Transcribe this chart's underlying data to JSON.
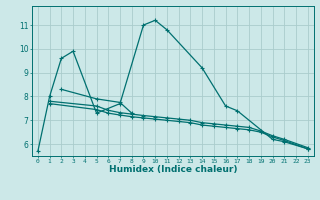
{
  "xlabel": "Humidex (Indice chaleur)",
  "bg_color": "#cce8e8",
  "grid_color": "#aacccc",
  "line_color": "#007070",
  "xlim": [
    -0.5,
    23.5
  ],
  "ylim": [
    5.5,
    11.8
  ],
  "xticks": [
    0,
    1,
    2,
    3,
    4,
    5,
    6,
    7,
    8,
    9,
    10,
    11,
    12,
    13,
    14,
    15,
    16,
    17,
    18,
    19,
    20,
    21,
    22,
    23
  ],
  "yticks": [
    6,
    7,
    8,
    9,
    10,
    11
  ],
  "curves": [
    {
      "x": [
        0,
        1,
        2,
        3,
        5,
        7,
        9,
        10,
        11,
        14,
        16,
        17,
        20,
        21,
        23
      ],
      "y": [
        5.7,
        8.0,
        9.6,
        9.9,
        7.3,
        7.7,
        11.0,
        11.2,
        10.8,
        9.2,
        7.6,
        7.4,
        6.2,
        6.1,
        5.8
      ]
    },
    {
      "x": [
        2,
        5,
        7,
        8
      ],
      "y": [
        8.3,
        7.9,
        7.75,
        7.3
      ]
    },
    {
      "x": [
        1,
        5,
        6,
        7,
        8,
        9,
        10,
        11,
        12,
        13,
        14,
        15,
        16,
        17,
        18,
        19,
        20,
        21,
        23
      ],
      "y": [
        7.7,
        7.45,
        7.3,
        7.22,
        7.15,
        7.1,
        7.05,
        7.0,
        6.95,
        6.9,
        6.8,
        6.75,
        6.7,
        6.65,
        6.6,
        6.5,
        6.3,
        6.15,
        5.8
      ]
    },
    {
      "x": [
        1,
        5,
        6,
        7,
        8,
        9,
        10,
        11,
        12,
        13,
        14,
        15,
        16,
        17,
        18,
        19,
        20,
        21,
        23
      ],
      "y": [
        7.8,
        7.6,
        7.42,
        7.32,
        7.26,
        7.2,
        7.15,
        7.1,
        7.05,
        7.0,
        6.9,
        6.85,
        6.8,
        6.75,
        6.7,
        6.55,
        6.35,
        6.2,
        5.85
      ]
    }
  ]
}
